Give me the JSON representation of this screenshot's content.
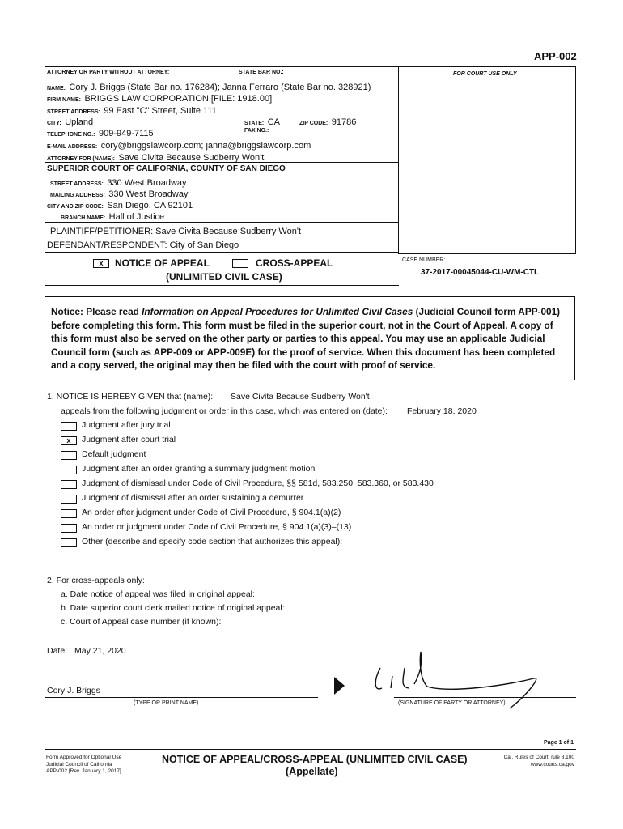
{
  "form_id": "APP-002",
  "attorney": {
    "header_label": "ATTORNEY OR PARTY WITHOUT ATTORNEY:",
    "state_bar_label": "STATE BAR NO.:",
    "name_label": "NAME:",
    "name": "Cory J. Briggs (State Bar no. 176284); Janna Ferraro (State Bar no. 328921)",
    "firm_label": "FIRM NAME:",
    "firm": "BRIGGS LAW CORPORATION [FILE: 1918.00]",
    "street_label": "STREET ADDRESS:",
    "street": "99 East \"C\" Street, Suite 111",
    "city_label": "CITY:",
    "city": "Upland",
    "state_label": "STATE:",
    "state": "CA",
    "zip_label": "ZIP CODE:",
    "zip": "91786",
    "phone_label": "TELEPHONE NO.:",
    "phone": "909-949-7115",
    "fax_label": "FAX NO.:",
    "email_label": "E-MAIL ADDRESS:",
    "email": "cory@briggslawcorp.com; janna@briggslawcorp.com",
    "for_label": "ATTORNEY FOR (name):",
    "for": "Save Civita Because Sudberry Won't"
  },
  "court": {
    "title": "SUPERIOR COURT OF CALIFORNIA, COUNTY OF SAN DIEGO",
    "street_label": "STREET ADDRESS:",
    "street": "330 West Broadway",
    "mailing_label": "MAILING ADDRESS:",
    "mailing": "330 West Broadway",
    "cityzip_label": "CITY AND ZIP CODE:",
    "cityzip": "San Diego, CA 92101",
    "branch_label": "BRANCH NAME:",
    "branch": "Hall of Justice"
  },
  "parties": {
    "plaintiff": "PLAINTIFF/PETITIONER: Save Civita Because Sudberry Won't",
    "defendant": "DEFENDANT/RESPONDENT: City of San Diego"
  },
  "court_use": "FOR COURT USE ONLY",
  "title": {
    "notice_mark": "x",
    "notice": "NOTICE OF APPEAL",
    "cross_mark": "",
    "cross": "CROSS-APPEAL",
    "sub": "(UNLIMITED CIVIL CASE)"
  },
  "case": {
    "label": "CASE NUMBER:",
    "number": "37-2017-00045044-CU-WM-CTL"
  },
  "notice_text": [
    "Notice: Please read ",
    "Information on Appeal Procedures for Unlimited Civil Cases",
    " (Judicial Council form APP-001) before completing this form. This form must be filed in the superior court, not in the Court of Appeal. A copy of this form must also be served on the other party or parties to this appeal. You may use an applicable Judicial Council form (such as APP-009 or APP-009E) for the proof of service. When this document has been completed and a copy served, the original may then be filed with the court with proof of service."
  ],
  "item1": {
    "label": "1.  NOTICE IS HEREBY GIVEN that (name):",
    "name": "Save Civita Because Sudberry Won't",
    "line2": "appeals from the following judgment or order in this case, which was entered on (date):",
    "date": "February 18, 2020",
    "options": [
      {
        "mark": "",
        "text": "Judgment after jury trial"
      },
      {
        "mark": "x",
        "text": "Judgment after court trial"
      },
      {
        "mark": "",
        "text": "Default judgment"
      },
      {
        "mark": "",
        "text": "Judgment after an order granting a summary judgment motion"
      },
      {
        "mark": "",
        "text": "Judgment of dismissal under Code of Civil Procedure, §§ 581d, 583.250, 583.360, or 583.430"
      },
      {
        "mark": "",
        "text": "Judgment of dismissal after an order sustaining a demurrer"
      },
      {
        "mark": "",
        "text": "An order after judgment under Code of Civil Procedure, § 904.1(a)(2)"
      },
      {
        "mark": "",
        "text": "An order or judgment under Code of Civil Procedure, § 904.1(a)(3)–(13)"
      },
      {
        "mark": "",
        "text": "Other (describe and specify code section that authorizes this appeal):"
      }
    ]
  },
  "item2": {
    "label": "2.  For cross-appeals only:",
    "a": "a.  Date notice of appeal was filed in original appeal:",
    "b": "b.  Date superior court clerk mailed notice of original appeal:",
    "c": "c.  Court of Appeal case number (if known):"
  },
  "date_label": "Date:",
  "date": "May 21, 2020",
  "signer": "Cory J. Briggs",
  "print_label": "(TYPE OR PRINT NAME)",
  "sig_label": "(SIGNATURE OF PARTY OR ATTORNEY)",
  "footer": {
    "page": "Page 1 of 1",
    "left": [
      "Form Approved for Optional Use",
      "Judicial Council of California",
      "APP-002 [Rev. January 1, 2017]"
    ],
    "title": "NOTICE OF APPEAL/CROSS-APPEAL (UNLIMITED CIVIL CASE)",
    "sub": "(Appellate)",
    "right": [
      "Cal. Rules of Court, rule 8.100",
      "www.courts.ca.gov"
    ]
  }
}
